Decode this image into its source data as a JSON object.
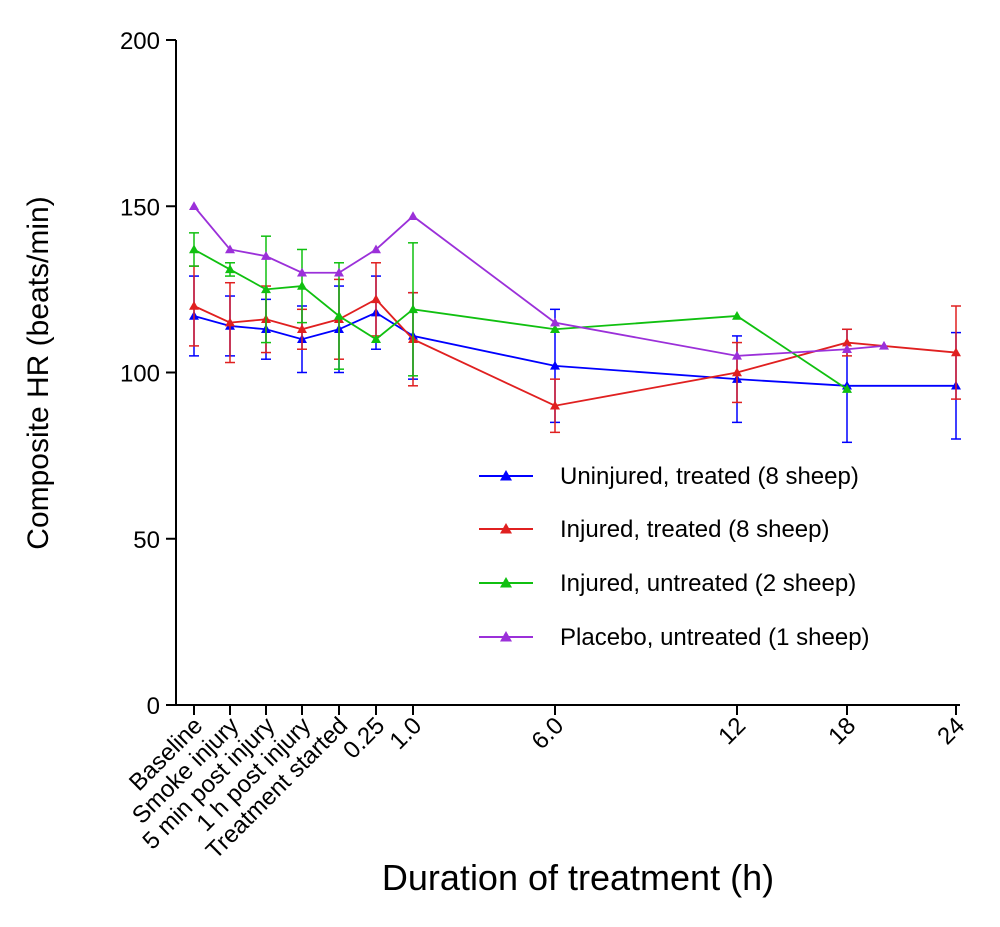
{
  "chart_data": {
    "type": "line",
    "title": "",
    "xlabel": "Duration of treatment (h)",
    "ylabel": "Composite HR (beats/min)",
    "ylim": [
      0,
      200
    ],
    "yticks": [
      0,
      50,
      100,
      150,
      200
    ],
    "x_ticks": [
      "Baseline",
      "Smoke injury",
      "5 min post injury",
      "1 h post injury",
      "Treatment started",
      "0.25",
      "1.0",
      "6.0",
      "12",
      "18",
      "24"
    ],
    "legend_position": "right",
    "series": [
      {
        "name": "Uninjured, treated (8 sheep)",
        "color": "#0000ff",
        "x": [
          "Baseline",
          "Smoke injury",
          "5 min post injury",
          "1 h post injury",
          "Treatment started",
          "0.25",
          "1.0",
          "6.0",
          "12",
          "18",
          "24"
        ],
        "values": [
          117,
          114,
          113,
          110,
          113,
          118,
          111,
          102,
          98,
          96,
          96
        ],
        "errors": [
          12,
          9,
          9,
          10,
          13,
          11,
          13,
          17,
          13,
          17,
          16
        ]
      },
      {
        "name": "Injured, treated (8 sheep)",
        "color": "#e02020",
        "x": [
          "Baseline",
          "Smoke injury",
          "5 min post injury",
          "1 h post injury",
          "Treatment started",
          "0.25",
          "1.0",
          "6.0",
          "12",
          "18",
          "24"
        ],
        "values": [
          120,
          115,
          116,
          113,
          116,
          122,
          110,
          90,
          100,
          109,
          106
        ],
        "errors": [
          12,
          12,
          10,
          6,
          12,
          11,
          14,
          8,
          9,
          4,
          14
        ]
      },
      {
        "name": "Injured, untreated (2 sheep)",
        "color": "#10c010",
        "x": [
          "Baseline",
          "Smoke injury",
          "5 min post injury",
          "1 h post injury",
          "Treatment started",
          "0.25",
          "1.0",
          "6.0",
          "12",
          "18"
        ],
        "values": [
          137,
          131,
          125,
          126,
          117,
          110,
          119,
          113,
          117,
          95
        ],
        "errors": [
          5,
          2,
          16,
          11,
          16,
          0,
          20,
          0,
          0,
          0
        ]
      },
      {
        "name": "Placebo, untreated (1 sheep)",
        "color": "#9b30d9",
        "x": [
          "Baseline",
          "Smoke injury",
          "5 min post injury",
          "1 h post injury",
          "Treatment started",
          "0.25",
          "1.0",
          "6.0",
          "12",
          "18",
          "20"
        ],
        "values": [
          150,
          137,
          135,
          130,
          130,
          137,
          147,
          115,
          105,
          107,
          108
        ]
      }
    ]
  }
}
